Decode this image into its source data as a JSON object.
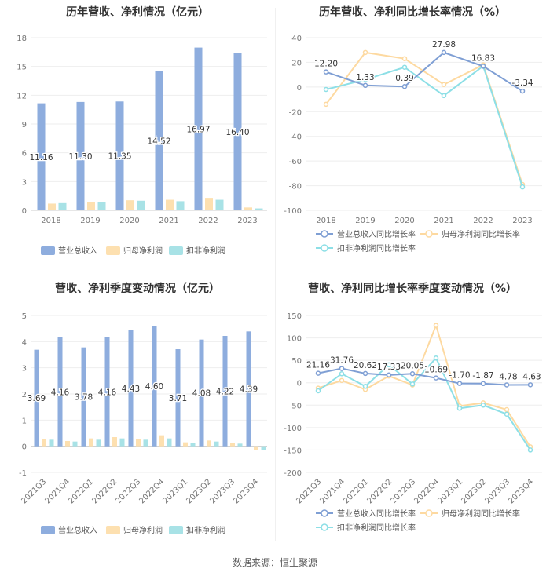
{
  "source": "数据来源：恒生聚源",
  "chart_data": [
    {
      "type": "bar",
      "title": "历年营收、净利情况（亿元）",
      "categories": [
        "2018",
        "2019",
        "2020",
        "2021",
        "2022",
        "2023"
      ],
      "ylim": [
        0,
        18
      ],
      "yticks": [
        0,
        3,
        6,
        9,
        12,
        15,
        18
      ],
      "legend_position": "bottom",
      "series": [
        {
          "name": "营业总收入",
          "color": "#8eadde",
          "values": [
            11.16,
            11.3,
            11.35,
            14.52,
            16.97,
            16.4
          ],
          "labels": [
            "11.16",
            "11.30",
            "11.35",
            "14.52",
            "16.97",
            "16.40"
          ]
        },
        {
          "name": "归母净利润",
          "color": "#fde0b0",
          "values": [
            0.7,
            0.9,
            1.05,
            1.1,
            1.3,
            0.3
          ]
        },
        {
          "name": "扣非净利润",
          "color": "#a8e2e6",
          "values": [
            0.75,
            0.85,
            1.0,
            0.95,
            1.1,
            0.2
          ]
        }
      ]
    },
    {
      "type": "line",
      "title": "历年营收、净利同比增长率情况（%）",
      "categories": [
        "2018",
        "2019",
        "2020",
        "2021",
        "2022",
        "2023"
      ],
      "ylim": [
        -100,
        40
      ],
      "yticks": [
        40,
        20,
        0,
        -20,
        -40,
        -60,
        -80,
        -100
      ],
      "legend_position": "bottom",
      "series": [
        {
          "name": "营业总收入同比增长率",
          "color": "#7f9fd4",
          "values": [
            12.2,
            1.33,
            0.39,
            27.98,
            16.83,
            -3.34
          ],
          "labels": [
            "12.20",
            "1.33",
            "0.39",
            "27.98",
            "16.83",
            "-3.34"
          ]
        },
        {
          "name": "归母净利润同比增长率",
          "color": "#fdd9a0",
          "values": [
            -14,
            28,
            23,
            2,
            18,
            -79
          ]
        },
        {
          "name": "扣非净利润同比增长率",
          "color": "#8ddfe6",
          "values": [
            -2,
            6,
            16,
            -7,
            17,
            -81
          ]
        }
      ]
    },
    {
      "type": "bar",
      "title": "营收、净利季度变动情况（亿元）",
      "categories": [
        "2021Q3",
        "2021Q4",
        "2022Q1",
        "2022Q2",
        "2022Q3",
        "2022Q4",
        "2023Q1",
        "2023Q2",
        "2023Q3",
        "2023Q4"
      ],
      "ylim": [
        -1,
        5
      ],
      "yticks": [
        -1,
        0,
        1,
        2,
        3,
        4,
        5
      ],
      "legend_position": "bottom",
      "series": [
        {
          "name": "营业总收入",
          "color": "#8eadde",
          "values": [
            3.69,
            4.16,
            3.78,
            4.16,
            4.43,
            4.6,
            3.71,
            4.08,
            4.22,
            4.39
          ],
          "labels": [
            "3.69",
            "4.16",
            "3.78",
            "4.16",
            "4.43",
            "4.60",
            "3.71",
            "4.08",
            "4.22",
            "4.39"
          ]
        },
        {
          "name": "归母净利润",
          "color": "#fde0b0",
          "values": [
            0.28,
            0.2,
            0.3,
            0.35,
            0.28,
            0.42,
            0.15,
            0.22,
            0.12,
            -0.15
          ]
        },
        {
          "name": "扣非净利润",
          "color": "#a8e2e6",
          "values": [
            0.25,
            0.18,
            0.25,
            0.3,
            0.25,
            0.3,
            0.12,
            0.18,
            0.1,
            -0.15
          ]
        }
      ]
    },
    {
      "type": "line",
      "title": "营收、净利同比增长率季度变动情况（%）",
      "categories": [
        "2021Q3",
        "2021Q4",
        "2022Q1",
        "2022Q2",
        "2022Q3",
        "2022Q4",
        "2023Q1",
        "2023Q2",
        "2023Q3",
        "2023Q4"
      ],
      "ylim": [
        -200,
        150
      ],
      "yticks": [
        150,
        100,
        50,
        0,
        -50,
        -100,
        -150,
        -200
      ],
      "legend_position": "bottom",
      "series": [
        {
          "name": "营业总收入同比增长率",
          "color": "#7f9fd4",
          "values": [
            21.16,
            31.76,
            20.62,
            17.33,
            20.05,
            10.69,
            -1.7,
            -1.87,
            -4.78,
            -4.63
          ],
          "labels": [
            "21.16",
            "31.76",
            "20.62",
            "17.33",
            "20.05",
            "10.69",
            "-1.70",
            "-1.87",
            "-4.78",
            "-4.63"
          ]
        },
        {
          "name": "归母净利润同比增长率",
          "color": "#fdd9a0",
          "values": [
            -12,
            5,
            -15,
            15,
            -5,
            128,
            -52,
            -45,
            -60,
            -143
          ]
        },
        {
          "name": "扣非净利润同比增长率",
          "color": "#8ddfe6",
          "values": [
            -18,
            20,
            -8,
            40,
            -3,
            55,
            -57,
            -50,
            -70,
            -150
          ]
        }
      ]
    }
  ]
}
